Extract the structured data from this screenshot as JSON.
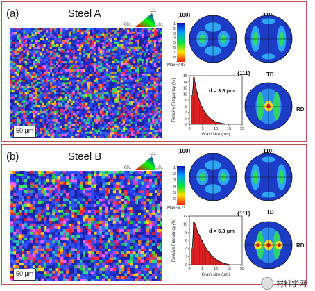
{
  "panels": [
    {
      "label": "(a)",
      "title": "Steel A",
      "scale_bar": "50 μm",
      "ipf_labels": {
        "top": "111",
        "left": "001",
        "right": "101"
      },
      "colorbar_ticks": [
        "1",
        "2",
        "3",
        "4",
        "5",
        "6",
        "7",
        "8"
      ],
      "max_label": "Max=7.93",
      "pole_figures": [
        "{100}",
        "{110}",
        "{111}"
      ],
      "axis_td": "TD",
      "axis_rd": "RD",
      "mean_label": "d̄ = 3.6 μm"
    },
    {
      "label": "(b)",
      "title": "Steel B",
      "scale_bar": "50 μm",
      "ipf_labels": {
        "top": "111",
        "left": "001",
        "right": "101"
      },
      "colorbar_ticks": [
        "1",
        "2",
        "3",
        "4",
        "5",
        "6"
      ],
      "max_label": "Max=6.74",
      "pole_figures": [
        "{100}",
        "{110}",
        "{111}"
      ],
      "axis_td": "TD",
      "axis_rd": "RD",
      "mean_label": "d̄ = 5.3 μm"
    }
  ],
  "chart_data": [
    {
      "type": "bar",
      "xlabel": "Grain size (um)",
      "ylabel": "Relative Frequency (%)",
      "xlim": [
        0,
        20
      ],
      "ylim": [
        0,
        16
      ],
      "xticks": [
        "0",
        "5",
        "10",
        "15",
        "20"
      ],
      "yticks": [
        "0",
        "2",
        "4",
        "6",
        "8",
        "10",
        "12",
        "14",
        "16"
      ],
      "x": [
        1.1,
        1.7,
        2.3,
        2.9,
        3.5,
        4.1,
        4.7,
        5.3,
        5.9,
        6.5,
        7.1,
        7.7,
        8.3,
        8.9,
        9.5,
        10.1,
        10.7,
        11.3,
        11.9,
        12.5,
        13.1,
        13.7
      ],
      "values": [
        9.5,
        15.5,
        13.0,
        10.5,
        8.5,
        7.0,
        5.8,
        4.8,
        4.0,
        3.3,
        2.6,
        2.1,
        1.7,
        1.3,
        1.0,
        0.8,
        0.6,
        0.5,
        0.35,
        0.25,
        0.2,
        0.1
      ]
    },
    {
      "type": "bar",
      "xlabel": "Grain size (um)",
      "ylabel": "Relative Frequency (%)",
      "xlim": [
        0,
        20
      ],
      "ylim": [
        0,
        12
      ],
      "xticks": [
        "0",
        "5",
        "10",
        "15",
        "20"
      ],
      "yticks": [
        "0",
        "2",
        "4",
        "6",
        "8",
        "10",
        "12"
      ],
      "x": [
        1.1,
        1.7,
        2.3,
        2.9,
        3.5,
        4.1,
        4.7,
        5.3,
        5.9,
        6.5,
        7.1,
        7.7,
        8.3,
        8.9,
        9.5,
        10.1,
        10.7,
        11.3,
        11.9,
        12.5,
        13.1,
        13.7,
        14.3,
        14.9
      ],
      "values": [
        4.0,
        10.5,
        10.0,
        8.5,
        7.5,
        6.8,
        6.0,
        5.2,
        4.5,
        3.9,
        3.3,
        2.8,
        2.3,
        1.9,
        1.6,
        1.3,
        1.0,
        0.8,
        0.6,
        0.5,
        0.35,
        0.25,
        0.15,
        0.1
      ]
    }
  ],
  "watermark": "材料学网",
  "colors": {
    "frame": "#c0504d",
    "bar": "#e02020",
    "fit": "#111111"
  }
}
